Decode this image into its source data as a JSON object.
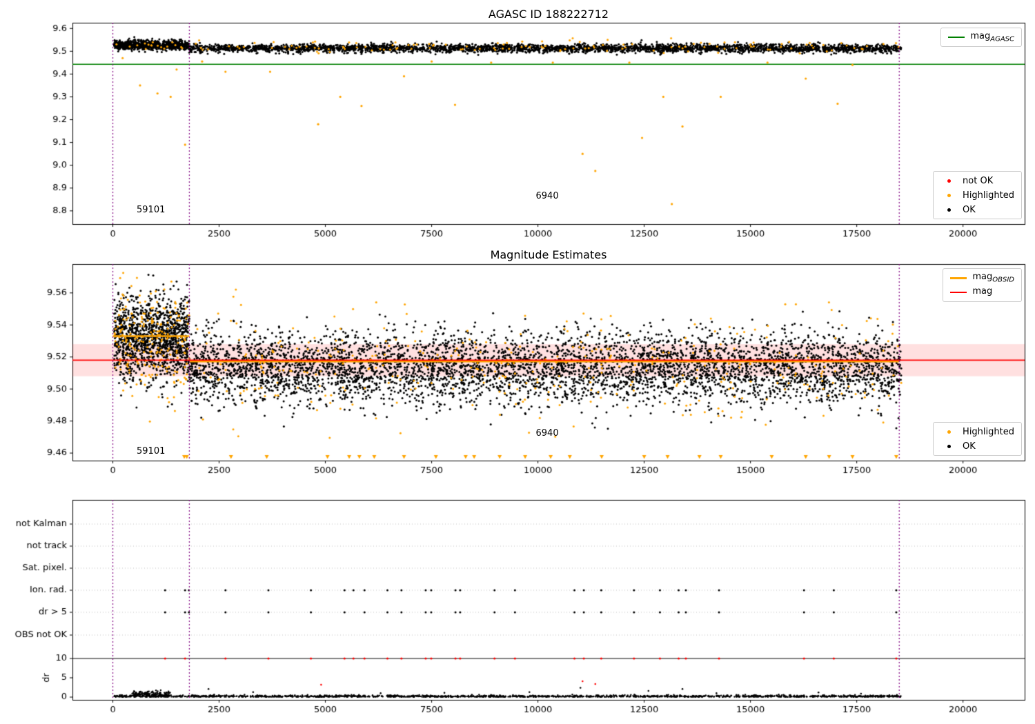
{
  "colors": {
    "ok": "#000000",
    "highlighted": "#ffa500",
    "not_ok": "#ff0000",
    "mag_line": "#ff0000",
    "mag_obsid_line": "#ffa500",
    "mag_agasc_line": "#008000",
    "mag_band": "rgba(255,0,0,0.12)",
    "vline": "#800080",
    "grid": "#b0b0b0",
    "spine": "#000000"
  },
  "chart_data": [
    {
      "id": "agasc-mag-vs-time",
      "type": "scatter",
      "title": "AGASC ID 188222712",
      "xlim": [
        -950,
        21450
      ],
      "ylim": [
        8.742,
        9.625
      ],
      "xticks": [
        0,
        2500,
        5000,
        7500,
        10000,
        12500,
        15000,
        17500,
        20000
      ],
      "yticks": [
        [
          8.8,
          "8.8"
        ],
        [
          8.9,
          "8.9"
        ],
        [
          9.0,
          "9.0"
        ],
        [
          9.1,
          "9.1"
        ],
        [
          9.2,
          "9.2"
        ],
        [
          9.3,
          "9.3"
        ],
        [
          9.4,
          "9.4"
        ],
        [
          9.5,
          "9.5"
        ],
        [
          9.6,
          "9.6"
        ]
      ],
      "mag_agasc": 9.443,
      "vlines": [
        0,
        1800,
        18500
      ],
      "clusters": [
        {
          "n": 900,
          "x": [
            30,
            1800
          ],
          "mean": 9.527,
          "sd": 0.01,
          "clip": [
            9.492,
            9.578
          ],
          "color": "ok",
          "r": 1.5
        },
        {
          "n": 3200,
          "x": [
            1800,
            18550
          ],
          "mean": 9.513,
          "sd": 0.009,
          "clip": [
            9.478,
            9.562
          ],
          "color": "ok",
          "r": 1.5
        },
        {
          "n": 150,
          "x": [
            30,
            18550
          ],
          "mean": 9.521,
          "sd": 0.013,
          "clip": [
            9.455,
            9.575
          ],
          "color": "highlighted",
          "r": 1.5
        }
      ],
      "highlighted_outliers": [
        [
          230,
          9.47
        ],
        [
          640,
          9.35
        ],
        [
          1050,
          9.315
        ],
        [
          1360,
          9.3
        ],
        [
          1500,
          9.42
        ],
        [
          1700,
          9.09
        ],
        [
          2100,
          9.455
        ],
        [
          2650,
          9.41
        ],
        [
          3700,
          9.41
        ],
        [
          4830,
          9.18
        ],
        [
          5350,
          9.3
        ],
        [
          5850,
          9.26
        ],
        [
          6850,
          9.39
        ],
        [
          7500,
          9.455
        ],
        [
          8050,
          9.265
        ],
        [
          8900,
          9.45
        ],
        [
          10350,
          9.45
        ],
        [
          11050,
          9.05
        ],
        [
          11350,
          8.975
        ],
        [
          12150,
          9.45
        ],
        [
          12450,
          9.12
        ],
        [
          12950,
          9.3
        ],
        [
          13150,
          8.83
        ],
        [
          13400,
          9.17
        ],
        [
          14300,
          9.3
        ],
        [
          15400,
          9.45
        ],
        [
          16300,
          9.38
        ],
        [
          17050,
          9.27
        ],
        [
          17400,
          9.44
        ]
      ],
      "annotations": [
        {
          "text": "59101",
          "x": 560,
          "y": 8.79
        },
        {
          "text": "6940",
          "x": 9950,
          "y": 8.85
        }
      ],
      "legend_line": {
        "prefix": "mag",
        "sub": "AGASC",
        "color_key": "mag_agasc_line"
      },
      "legend_markers": [
        {
          "label": "not OK",
          "color_key": "not_ok"
        },
        {
          "label": "Highlighted",
          "color_key": "highlighted"
        },
        {
          "label": "OK",
          "color_key": "ok"
        }
      ]
    },
    {
      "id": "magnitude-estimates",
      "type": "scatter",
      "title": "Magnitude Estimates",
      "xlim": [
        -950,
        21450
      ],
      "ylim": [
        9.4553,
        9.578
      ],
      "xticks": [
        0,
        2500,
        5000,
        7500,
        10000,
        12500,
        15000,
        17500,
        20000
      ],
      "yticks": [
        [
          9.46,
          "9.46"
        ],
        [
          9.48,
          "9.48"
        ],
        [
          9.5,
          "9.50"
        ],
        [
          9.52,
          "9.52"
        ],
        [
          9.54,
          "9.54"
        ],
        [
          9.56,
          "9.56"
        ]
      ],
      "mag": 9.518,
      "mag_band": [
        9.508,
        9.528
      ],
      "mag_obsid_segments": [
        {
          "x": [
            0,
            1800
          ],
          "y": 9.533
        },
        {
          "x": [
            1800,
            18500
          ],
          "y": 9.5172
        }
      ],
      "vlines": [
        0,
        1800,
        18500
      ],
      "clusters": [
        {
          "n": 1300,
          "x": [
            30,
            1800
          ],
          "mean": 9.532,
          "sd": 0.013,
          "clip": [
            9.488,
            9.573
          ],
          "color": "ok",
          "r": 1.5
        },
        {
          "n": 5000,
          "x": [
            1800,
            18550
          ],
          "mean": 9.5135,
          "sd": 0.011,
          "clip": [
            9.468,
            9.557
          ],
          "color": "ok",
          "r": 1.5
        },
        {
          "n": 220,
          "x": [
            30,
            1800
          ],
          "mean": 9.531,
          "sd": 0.017,
          "clip": [
            9.459,
            9.574
          ],
          "color": "highlighted",
          "r": 1.5
        },
        {
          "n": 380,
          "x": [
            1800,
            18550
          ],
          "mean": 9.5145,
          "sd": 0.016,
          "clip": [
            9.459,
            9.57
          ],
          "color": "highlighted",
          "r": 1.5
        }
      ],
      "clipped_marker_y": 9.4577,
      "clipped_low_xs": [
        1680,
        1740,
        2780,
        3620,
        5050,
        5560,
        5800,
        6150,
        6850,
        7600,
        8300,
        8500,
        9100,
        9700,
        10300,
        10750,
        11500,
        12500,
        13050,
        13800,
        14300,
        15500,
        16300,
        16850,
        17400,
        18430
      ],
      "annotations": [
        {
          "text": "59101",
          "x": 560,
          "y": 9.459
        },
        {
          "text": "6940",
          "x": 9950,
          "y": 9.4705
        }
      ],
      "legend_lines": [
        {
          "prefix": "mag",
          "sub": "OBSID",
          "color_key": "mag_obsid_line"
        },
        {
          "prefix": "mag",
          "sub": "",
          "color_key": "mag_line"
        }
      ],
      "legend_markers": [
        {
          "label": "Highlighted",
          "color_key": "highlighted"
        },
        {
          "label": "OK",
          "color_key": "ok"
        }
      ]
    },
    {
      "id": "quality-flags",
      "type": "flags",
      "categories": [
        "not Kalman",
        "not track",
        "Sat. pixel.",
        "Ion. rad.",
        "dr > 5",
        "OBS not OK"
      ],
      "dr_axis": {
        "label": "dr",
        "ticks": [
          [
            10,
            "10"
          ],
          [
            5,
            "5"
          ],
          [
            0,
            "0"
          ]
        ],
        "hline": 10
      },
      "xticks": [
        0,
        2500,
        5000,
        7500,
        10000,
        12500,
        15000,
        17500,
        20000
      ],
      "vlines": [
        0,
        1800,
        18500
      ],
      "flag_points": [
        {
          "category": "Ion. rad.",
          "xs": [
            1230,
            1700,
            1790,
            2650,
            3660,
            4660,
            5450,
            5660,
            5920,
            6460,
            6790,
            7360,
            7490,
            8060,
            8170,
            8980,
            9460,
            10860,
            11080,
            11490,
            12260,
            12870,
            13310,
            13480,
            14260,
            16260,
            16960,
            18430
          ]
        },
        {
          "category": "dr > 5",
          "xs": [
            1230,
            1700,
            1790,
            2650,
            3660,
            4660,
            5450,
            5920,
            6460,
            6790,
            7360,
            7490,
            8060,
            8170,
            8980,
            9460,
            10860,
            11080,
            11490,
            12260,
            12870,
            13310,
            13480,
            14260,
            16260,
            16960,
            18430
          ]
        }
      ],
      "dr_red_clipped_xs": [
        1230,
        1700,
        2650,
        3660,
        4660,
        5450,
        5660,
        5920,
        6460,
        6790,
        7360,
        7490,
        8060,
        8170,
        8980,
        9460,
        10860,
        11080,
        11490,
        12260,
        12870,
        13310,
        13480,
        14260,
        16260,
        16960,
        18430
      ],
      "dr_red_points": [
        [
          4900,
          3.2
        ],
        [
          11050,
          4.1
        ],
        [
          11350,
          3.4
        ]
      ],
      "dr_black_points": [
        [
          2250,
          2.1
        ],
        [
          3300,
          1.3
        ],
        [
          6300,
          1.0
        ],
        [
          7800,
          1.1
        ],
        [
          9800,
          1.3
        ],
        [
          11000,
          2.4
        ],
        [
          12600,
          1.6
        ],
        [
          13400,
          2.1
        ],
        [
          14200,
          1.0
        ],
        [
          16600,
          1.2
        ],
        [
          17600,
          0.9
        ]
      ],
      "dr_clusters": [
        {
          "n": 1700,
          "x": [
            30,
            18550
          ],
          "offset": 0.05,
          "scale": 0.22
        },
        {
          "n": 140,
          "x": [
            450,
            1350
          ],
          "offset": 0.3,
          "scale": 0.6
        }
      ]
    }
  ]
}
